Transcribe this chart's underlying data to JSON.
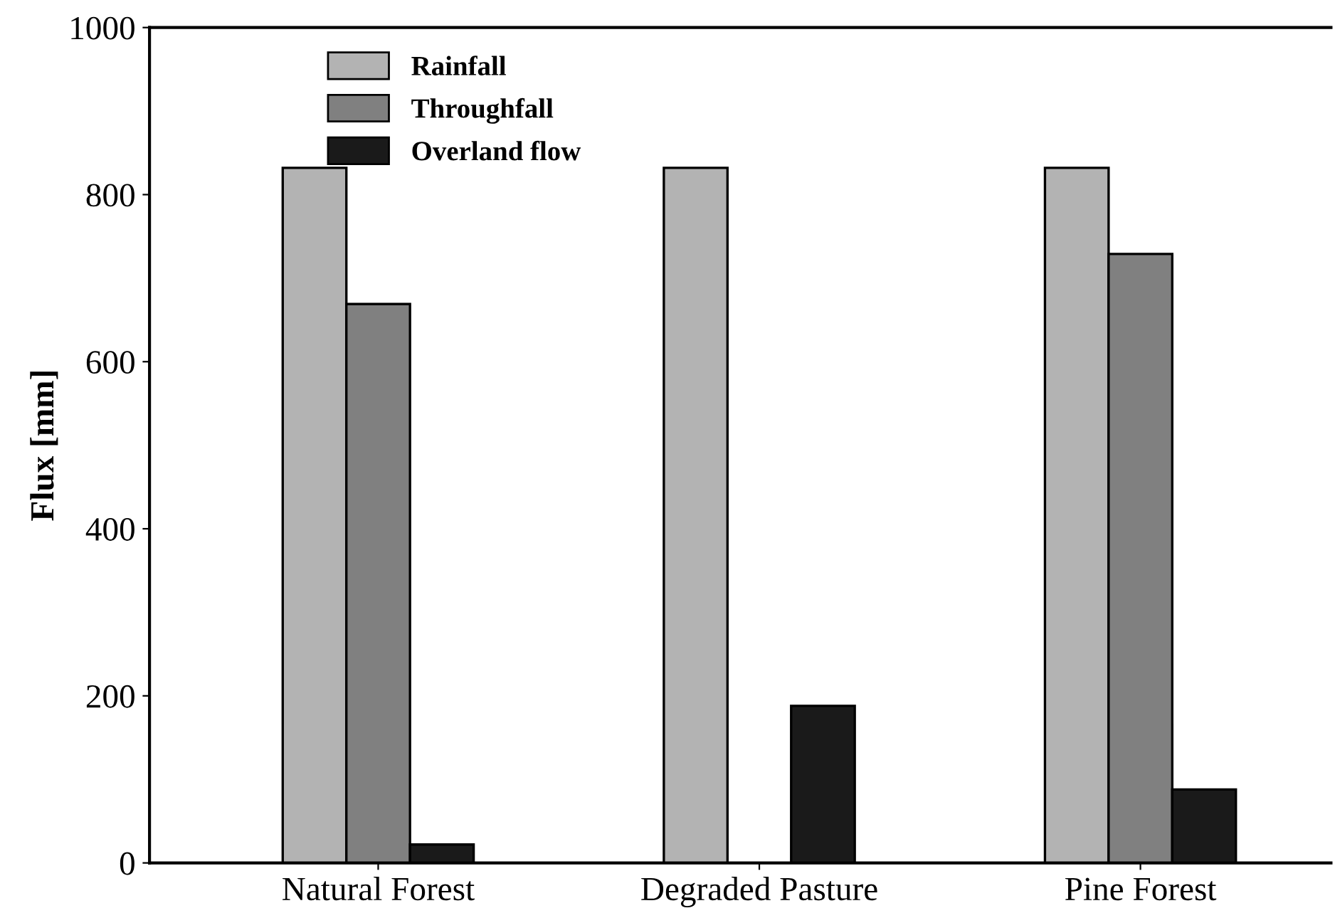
{
  "chart_data": {
    "type": "bar",
    "ylabel": "Flux [mm]",
    "categories": [
      "Natural Forest",
      "Degraded Pasture",
      "Pine Forest"
    ],
    "series": [
      {
        "name": "Rainfall",
        "color": "#b3b3b3",
        "values": [
          832,
          832,
          832
        ]
      },
      {
        "name": "Throughfall",
        "color": "#808080",
        "values": [
          669,
          null,
          729
        ]
      },
      {
        "name": "Overland flow",
        "color": "#1a1a1a",
        "values": [
          22,
          188,
          88
        ]
      }
    ],
    "ylim": [
      0,
      1000
    ],
    "yticks": [
      0,
      200,
      400,
      600,
      800,
      1000
    ],
    "grid": false,
    "legend": "top left"
  }
}
